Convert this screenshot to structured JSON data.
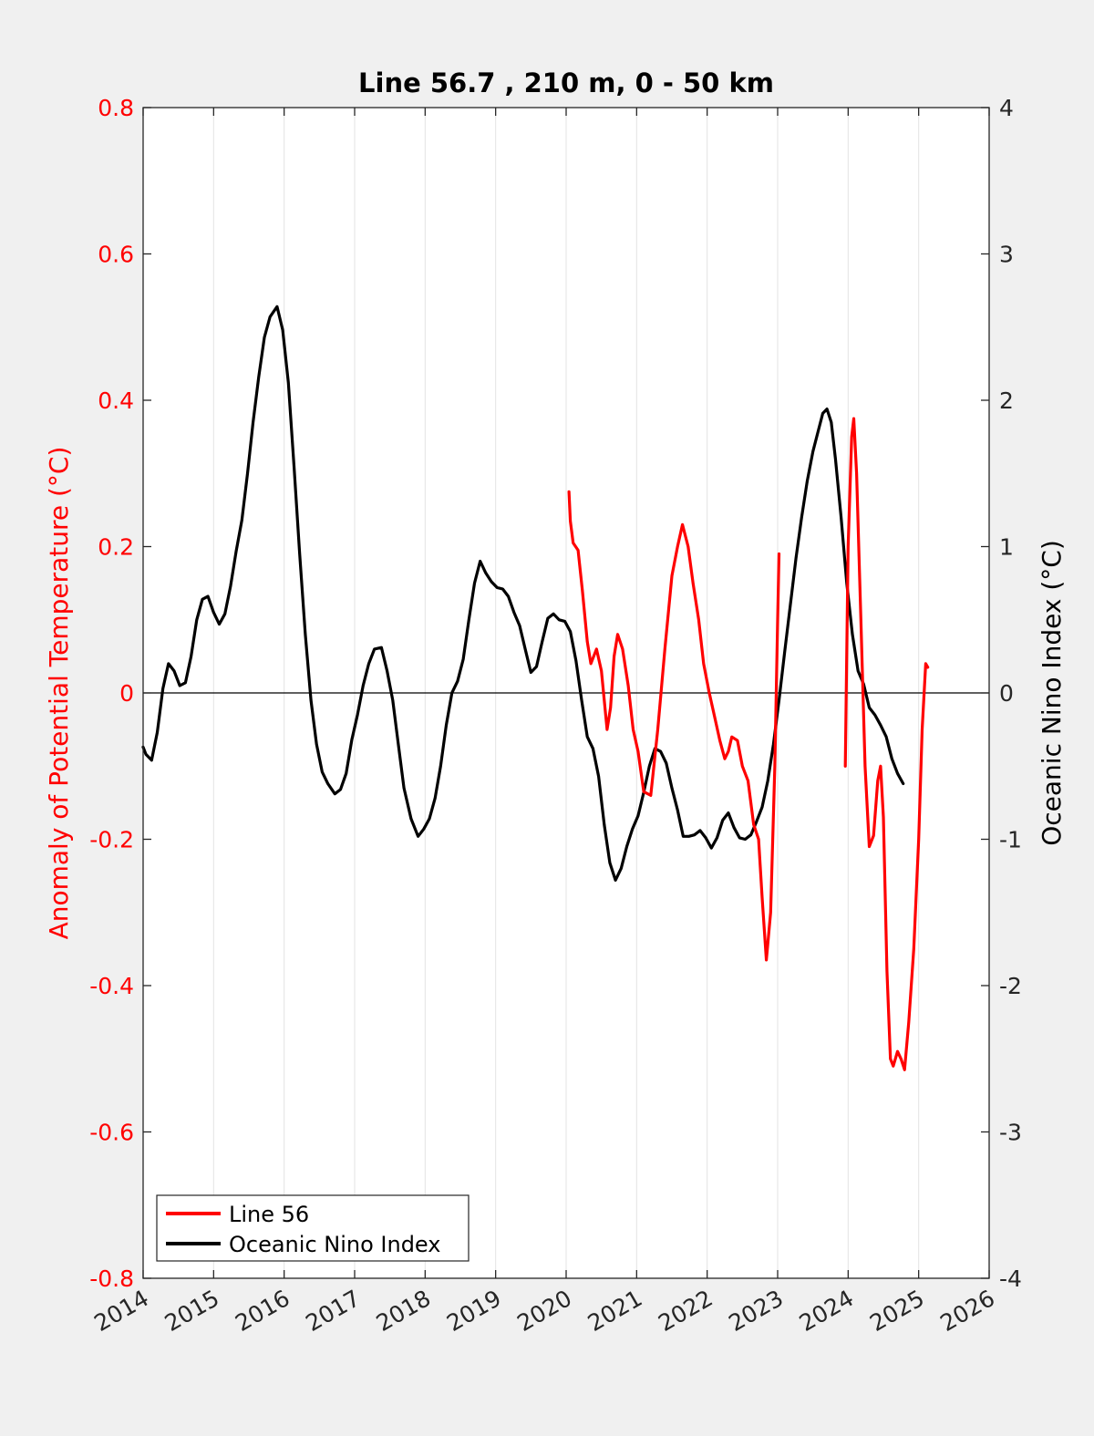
{
  "chart_data": {
    "type": "line",
    "title": "Line 56.7 , 210 m, 0 - 50 km",
    "xlabel": "",
    "ylabel_left": "Anomaly of Potential Temperature (°C)",
    "ylabel_right": "Oceanic Nino Index (°C)",
    "xlim": [
      2014,
      2026
    ],
    "ylim_left": [
      -0.8,
      0.8
    ],
    "ylim_right": [
      -4,
      4
    ],
    "x_ticks": [
      "2014",
      "2015",
      "2016",
      "2017",
      "2018",
      "2019",
      "2020",
      "2021",
      "2022",
      "2023",
      "2024",
      "2025",
      "2026"
    ],
    "y_ticks_left": [
      "0.8",
      "0.6",
      "0.4",
      "0.2",
      "0",
      "-0.2",
      "-0.4",
      "-0.6",
      "-0.8"
    ],
    "y_ticks_right": [
      "4",
      "3",
      "2",
      "1",
      "0",
      "-1",
      "-2",
      "-3",
      "-4"
    ],
    "grid": "vertical",
    "legend_position": "bottom-left",
    "colors": {
      "line56": "#ff0000",
      "oni": "#000000",
      "left_axis": "#ff0000",
      "right_axis": "#262626"
    },
    "series": [
      {
        "name": "Line 56",
        "axis": "left",
        "color": "#ff0000",
        "segments": [
          [
            [
              2020.04,
              0.275
            ],
            [
              2020.06,
              0.235
            ],
            [
              2020.1,
              0.205
            ],
            [
              2020.17,
              0.195
            ],
            [
              2020.23,
              0.14
            ],
            [
              2020.3,
              0.07
            ],
            [
              2020.35,
              0.04
            ],
            [
              2020.43,
              0.06
            ],
            [
              2020.5,
              0.03
            ],
            [
              2020.58,
              -0.05
            ],
            [
              2020.63,
              -0.02
            ],
            [
              2020.68,
              0.05
            ],
            [
              2020.73,
              0.08
            ],
            [
              2020.8,
              0.06
            ],
            [
              2020.88,
              0.01
            ],
            [
              2020.95,
              -0.05
            ],
            [
              2021.02,
              -0.08
            ],
            [
              2021.1,
              -0.135
            ],
            [
              2021.2,
              -0.14
            ],
            [
              2021.3,
              -0.05
            ],
            [
              2021.4,
              0.06
            ],
            [
              2021.5,
              0.16
            ],
            [
              2021.58,
              0.2
            ],
            [
              2021.65,
              0.23
            ],
            [
              2021.73,
              0.2
            ],
            [
              2021.8,
              0.15
            ],
            [
              2021.88,
              0.1
            ],
            [
              2021.95,
              0.04
            ],
            [
              2022.03,
              0.0
            ],
            [
              2022.1,
              -0.03
            ],
            [
              2022.18,
              -0.065
            ],
            [
              2022.25,
              -0.09
            ],
            [
              2022.3,
              -0.08
            ],
            [
              2022.35,
              -0.06
            ],
            [
              2022.43,
              -0.065
            ],
            [
              2022.5,
              -0.1
            ],
            [
              2022.58,
              -0.12
            ],
            [
              2022.66,
              -0.18
            ],
            [
              2022.73,
              -0.2
            ],
            [
              2022.78,
              -0.28
            ],
            [
              2022.84,
              -0.365
            ],
            [
              2022.9,
              -0.3
            ],
            [
              2022.96,
              -0.1
            ],
            [
              2023.0,
              0.1
            ],
            [
              2023.02,
              0.19
            ]
          ],
          [
            [
              2023.96,
              -0.1
            ],
            [
              2024.0,
              0.2
            ],
            [
              2024.05,
              0.35
            ],
            [
              2024.08,
              0.375
            ],
            [
              2024.12,
              0.3
            ],
            [
              2024.18,
              0.1
            ],
            [
              2024.24,
              -0.1
            ],
            [
              2024.3,
              -0.21
            ],
            [
              2024.36,
              -0.195
            ],
            [
              2024.42,
              -0.12
            ],
            [
              2024.46,
              -0.1
            ],
            [
              2024.5,
              -0.17
            ],
            [
              2024.55,
              -0.38
            ],
            [
              2024.6,
              -0.5
            ],
            [
              2024.64,
              -0.51
            ],
            [
              2024.7,
              -0.49
            ],
            [
              2024.75,
              -0.5
            ],
            [
              2024.8,
              -0.515
            ],
            [
              2024.86,
              -0.45
            ],
            [
              2024.93,
              -0.35
            ],
            [
              2025.0,
              -0.2
            ],
            [
              2025.05,
              -0.05
            ],
            [
              2025.1,
              0.04
            ],
            [
              2025.13,
              0.035
            ]
          ]
        ]
      },
      {
        "name": "Oceanic Nino Index",
        "axis": "right",
        "color": "#000000",
        "points": [
          [
            2014.0,
            -0.37
          ],
          [
            2014.04,
            -0.42
          ],
          [
            2014.12,
            -0.46
          ],
          [
            2014.2,
            -0.27
          ],
          [
            2014.28,
            0.03
          ],
          [
            2014.36,
            0.2
          ],
          [
            2014.44,
            0.15
          ],
          [
            2014.52,
            0.05
          ],
          [
            2014.6,
            0.07
          ],
          [
            2014.68,
            0.25
          ],
          [
            2014.76,
            0.5
          ],
          [
            2014.84,
            0.64
          ],
          [
            2014.92,
            0.66
          ],
          [
            2015.0,
            0.55
          ],
          [
            2015.08,
            0.47
          ],
          [
            2015.16,
            0.54
          ],
          [
            2015.24,
            0.73
          ],
          [
            2015.32,
            0.97
          ],
          [
            2015.4,
            1.18
          ],
          [
            2015.48,
            1.5
          ],
          [
            2015.56,
            1.85
          ],
          [
            2015.64,
            2.16
          ],
          [
            2015.72,
            2.43
          ],
          [
            2015.8,
            2.57
          ],
          [
            2015.9,
            2.64
          ],
          [
            2015.98,
            2.48
          ],
          [
            2016.06,
            2.12
          ],
          [
            2016.14,
            1.55
          ],
          [
            2016.22,
            0.95
          ],
          [
            2016.3,
            0.4
          ],
          [
            2016.38,
            -0.05
          ],
          [
            2016.46,
            -0.35
          ],
          [
            2016.54,
            -0.54
          ],
          [
            2016.62,
            -0.62
          ],
          [
            2016.72,
            -0.69
          ],
          [
            2016.8,
            -0.66
          ],
          [
            2016.88,
            -0.55
          ],
          [
            2016.96,
            -0.32
          ],
          [
            2017.04,
            -0.15
          ],
          [
            2017.12,
            0.05
          ],
          [
            2017.2,
            0.2
          ],
          [
            2017.28,
            0.3
          ],
          [
            2017.38,
            0.31
          ],
          [
            2017.46,
            0.15
          ],
          [
            2017.54,
            -0.05
          ],
          [
            2017.62,
            -0.35
          ],
          [
            2017.7,
            -0.65
          ],
          [
            2017.8,
            -0.86
          ],
          [
            2017.9,
            -0.98
          ],
          [
            2017.98,
            -0.93
          ],
          [
            2018.06,
            -0.86
          ],
          [
            2018.14,
            -0.72
          ],
          [
            2018.22,
            -0.5
          ],
          [
            2018.3,
            -0.22
          ],
          [
            2018.38,
            0.0
          ],
          [
            2018.46,
            0.08
          ],
          [
            2018.54,
            0.23
          ],
          [
            2018.62,
            0.5
          ],
          [
            2018.7,
            0.75
          ],
          [
            2018.78,
            0.9
          ],
          [
            2018.86,
            0.82
          ],
          [
            2018.94,
            0.76
          ],
          [
            2019.02,
            0.72
          ],
          [
            2019.1,
            0.71
          ],
          [
            2019.18,
            0.66
          ],
          [
            2019.26,
            0.55
          ],
          [
            2019.34,
            0.46
          ],
          [
            2019.42,
            0.3
          ],
          [
            2019.5,
            0.14
          ],
          [
            2019.58,
            0.18
          ],
          [
            2019.66,
            0.35
          ],
          [
            2019.74,
            0.51
          ],
          [
            2019.82,
            0.54
          ],
          [
            2019.9,
            0.5
          ],
          [
            2019.98,
            0.49
          ],
          [
            2020.06,
            0.42
          ],
          [
            2020.14,
            0.22
          ],
          [
            2020.22,
            -0.05
          ],
          [
            2020.3,
            -0.3
          ],
          [
            2020.38,
            -0.38
          ],
          [
            2020.46,
            -0.57
          ],
          [
            2020.54,
            -0.9
          ],
          [
            2020.62,
            -1.16
          ],
          [
            2020.7,
            -1.28
          ],
          [
            2020.78,
            -1.2
          ],
          [
            2020.86,
            -1.05
          ],
          [
            2020.94,
            -0.93
          ],
          [
            2021.02,
            -0.84
          ],
          [
            2021.1,
            -0.68
          ],
          [
            2021.18,
            -0.5
          ],
          [
            2021.26,
            -0.38
          ],
          [
            2021.34,
            -0.4
          ],
          [
            2021.42,
            -0.48
          ],
          [
            2021.5,
            -0.65
          ],
          [
            2021.58,
            -0.8
          ],
          [
            2021.66,
            -0.98
          ],
          [
            2021.74,
            -0.98
          ],
          [
            2021.82,
            -0.97
          ],
          [
            2021.9,
            -0.94
          ],
          [
            2021.98,
            -0.99
          ],
          [
            2022.06,
            -1.06
          ],
          [
            2022.14,
            -0.99
          ],
          [
            2022.22,
            -0.87
          ],
          [
            2022.3,
            -0.82
          ],
          [
            2022.38,
            -0.92
          ],
          [
            2022.46,
            -0.99
          ],
          [
            2022.54,
            -1.0
          ],
          [
            2022.62,
            -0.97
          ],
          [
            2022.7,
            -0.88
          ],
          [
            2022.78,
            -0.78
          ],
          [
            2022.86,
            -0.6
          ],
          [
            2022.94,
            -0.35
          ],
          [
            2023.02,
            -0.05
          ],
          [
            2023.1,
            0.28
          ],
          [
            2023.18,
            0.6
          ],
          [
            2023.26,
            0.92
          ],
          [
            2023.34,
            1.2
          ],
          [
            2023.42,
            1.45
          ],
          [
            2023.5,
            1.65
          ],
          [
            2023.58,
            1.8
          ],
          [
            2023.64,
            1.91
          ],
          [
            2023.7,
            1.94
          ],
          [
            2023.76,
            1.85
          ],
          [
            2023.82,
            1.6
          ],
          [
            2023.9,
            1.2
          ],
          [
            2023.98,
            0.75
          ],
          [
            2024.06,
            0.4
          ],
          [
            2024.14,
            0.15
          ],
          [
            2024.22,
            0.06
          ],
          [
            2024.3,
            -0.1
          ],
          [
            2024.38,
            -0.15
          ],
          [
            2024.46,
            -0.22
          ],
          [
            2024.54,
            -0.3
          ],
          [
            2024.62,
            -0.45
          ],
          [
            2024.7,
            -0.55
          ],
          [
            2024.78,
            -0.62
          ]
        ]
      }
    ]
  }
}
